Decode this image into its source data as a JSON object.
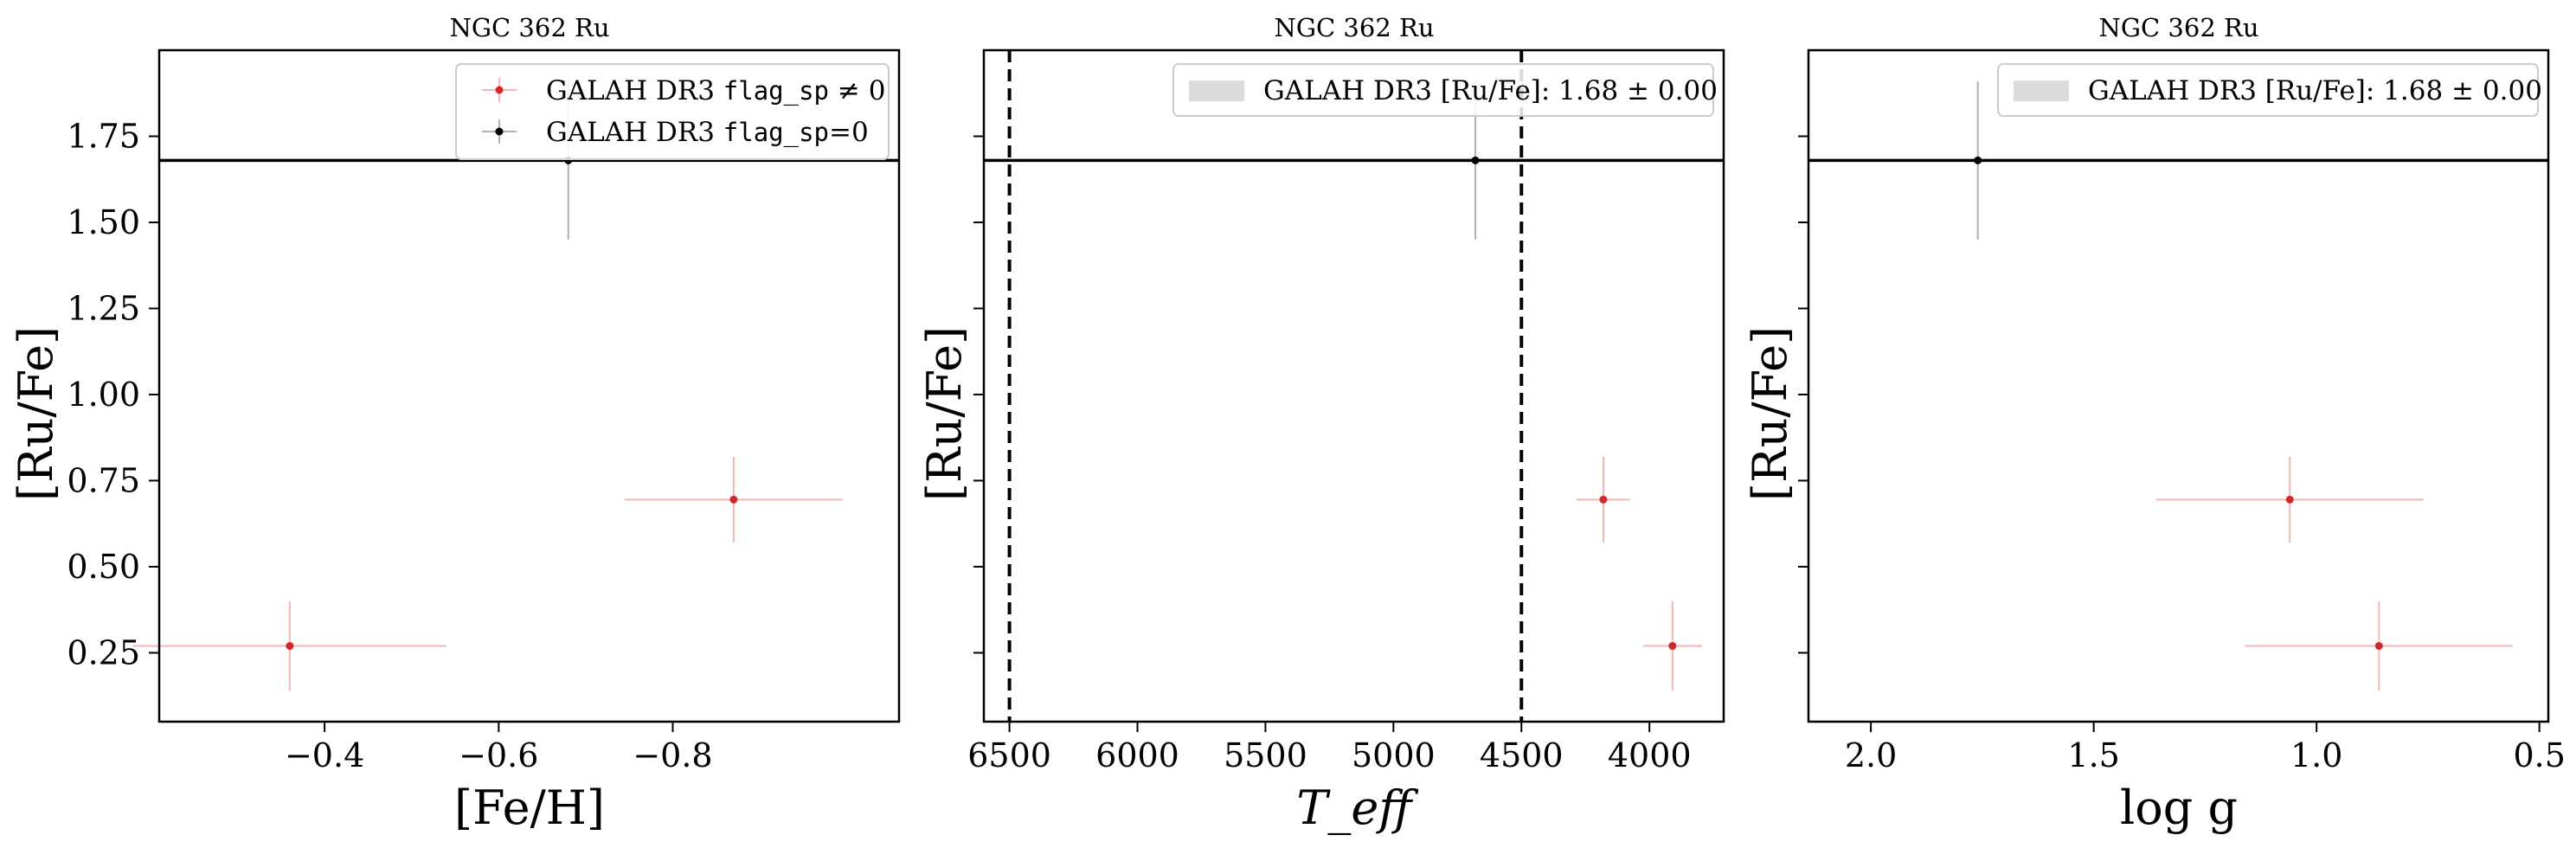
{
  "colors": {
    "flagged": "#d62728",
    "flagged_bar": "#f2b8b8",
    "clean": "#000000",
    "clean_bar": "#b0b0b0",
    "band": "#dcdcdc",
    "mean_line": "#000000"
  },
  "chart_data": [
    {
      "type": "scatter",
      "title": "NGC 362 Ru",
      "xlabel": "[Fe/H]",
      "ylabel": "[Ru/Fe]",
      "xlim": [
        -0.21,
        -1.06
      ],
      "ylim": [
        0.05,
        2.0
      ],
      "x_inverted": true,
      "xticks": [
        -0.4,
        -0.6,
        -0.8
      ],
      "xtick_labels": [
        "−0.4",
        "−0.6",
        "−0.8"
      ],
      "yticks": [
        0.25,
        0.5,
        0.75,
        1.0,
        1.25,
        1.5,
        1.75
      ],
      "ytick_labels": [
        "0.25",
        "0.50",
        "0.75",
        "1.00",
        "1.25",
        "1.50",
        "1.75"
      ],
      "show_ytick_labels": true,
      "grid": false,
      "mean_line": 1.68,
      "vlines": [],
      "legend": {
        "position": "top-right",
        "entries": [
          {
            "kind": "point",
            "series": "flagged",
            "text": "GALAH DR3 ",
            "mono": "flag_sp",
            "suffix": " ≠ 0"
          },
          {
            "kind": "point",
            "series": "clean",
            "text": "GALAH DR3 ",
            "mono": "flag_sp",
            "suffix": "=0"
          }
        ]
      },
      "series": [
        {
          "name": "GALAH DR3 flag_sp ≠ 0",
          "key": "flagged",
          "points": [
            {
              "x": -0.36,
              "y": 0.27,
              "xerr": 0.18,
              "yerr": 0.13
            },
            {
              "x": -0.87,
              "y": 0.695,
              "xerr": 0.125,
              "yerr": 0.125
            }
          ]
        },
        {
          "name": "GALAH DR3 flag_sp=0",
          "key": "clean",
          "points": [
            {
              "x": -0.68,
              "y": 1.68,
              "xerr": 0,
              "yerr": 0.23
            }
          ]
        }
      ]
    },
    {
      "type": "scatter",
      "title": "NGC 362 Ru",
      "xlabel": "T_eff",
      "ylabel": "[Ru/Fe]",
      "xlim": [
        6600,
        3710
      ],
      "ylim": [
        0.05,
        2.0
      ],
      "x_inverted": true,
      "xticks": [
        6500,
        6000,
        5500,
        5000,
        4500,
        4000
      ],
      "xtick_labels": [
        "6500",
        "6000",
        "5500",
        "5000",
        "4500",
        "4000"
      ],
      "yticks": [
        0.25,
        0.5,
        0.75,
        1.0,
        1.25,
        1.5,
        1.75
      ],
      "ytick_labels": [
        "0.25",
        "0.50",
        "0.75",
        "1.00",
        "1.25",
        "1.50",
        "1.75"
      ],
      "show_ytick_labels": false,
      "grid": false,
      "mean_line": 1.68,
      "vlines": [
        6500,
        4500
      ],
      "legend": {
        "position": "top-right",
        "entries": [
          {
            "kind": "band",
            "text": "GALAH DR3 [Ru/Fe]: 1.68 ± 0.00"
          }
        ]
      },
      "series": [
        {
          "name": "GALAH DR3 flag_sp ≠ 0",
          "key": "flagged",
          "points": [
            {
              "x": 3910,
              "y": 0.27,
              "xerr": 115,
              "yerr": 0.13
            },
            {
              "x": 4180,
              "y": 0.695,
              "xerr": 105,
              "yerr": 0.125
            }
          ]
        },
        {
          "name": "GALAH DR3 flag_sp=0",
          "key": "clean",
          "points": [
            {
              "x": 4680,
              "y": 1.68,
              "xerr": 0,
              "yerr": 0.23
            }
          ]
        }
      ]
    },
    {
      "type": "scatter",
      "title": "NGC 362 Ru",
      "xlabel": "log g",
      "ylabel": "[Ru/Fe]",
      "xlim": [
        2.14,
        0.48
      ],
      "ylim": [
        0.05,
        2.0
      ],
      "x_inverted": true,
      "xticks": [
        2.0,
        1.5,
        1.0,
        0.5
      ],
      "xtick_labels": [
        "2.0",
        "1.5",
        "1.0",
        "0.5"
      ],
      "yticks": [
        0.25,
        0.5,
        0.75,
        1.0,
        1.25,
        1.5,
        1.75
      ],
      "ytick_labels": [
        "0.25",
        "0.50",
        "0.75",
        "1.00",
        "1.25",
        "1.50",
        "1.75"
      ],
      "show_ytick_labels": false,
      "grid": false,
      "mean_line": 1.68,
      "vlines": [],
      "legend": {
        "position": "top-right",
        "entries": [
          {
            "kind": "band",
            "text": "GALAH DR3 [Ru/Fe]: 1.68 ± 0.00"
          }
        ]
      },
      "series": [
        {
          "name": "GALAH DR3 flag_sp ≠ 0",
          "key": "flagged",
          "points": [
            {
              "x": 0.86,
              "y": 0.27,
              "xerr": 0.3,
              "yerr": 0.13
            },
            {
              "x": 1.06,
              "y": 0.695,
              "xerr": 0.3,
              "yerr": 0.125
            }
          ]
        },
        {
          "name": "GALAH DR3 flag_sp=0",
          "key": "clean",
          "points": [
            {
              "x": 1.76,
              "y": 1.68,
              "xerr": 0,
              "yerr": 0.23
            }
          ]
        }
      ]
    }
  ]
}
